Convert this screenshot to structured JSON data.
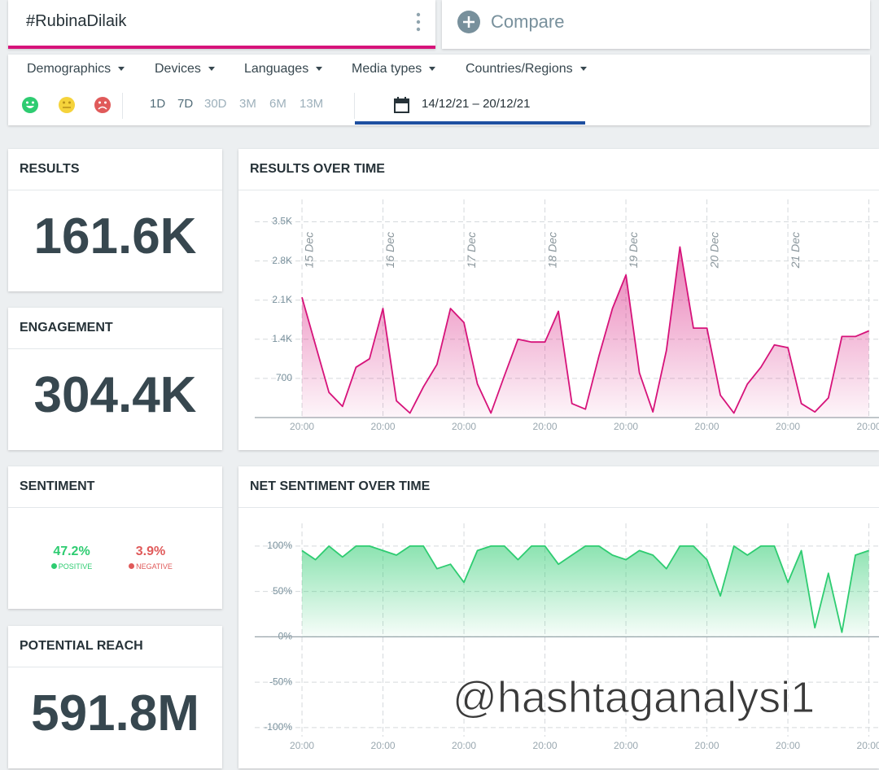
{
  "search": {
    "query": "#RubinaDilaik",
    "compare": "Compare"
  },
  "filters": [
    "Demographics",
    "Devices",
    "Languages",
    "Media types",
    "Countries/Regions"
  ],
  "periods": [
    "1D",
    "7D",
    "30D",
    "3M",
    "6M",
    "13M"
  ],
  "date_range": "14/12/21 – 20/12/21",
  "metrics": [
    {
      "title": "RESULTS",
      "value": "161.6K"
    },
    {
      "title": "ENGAGEMENT",
      "value": "304.4K"
    }
  ],
  "sentiment": {
    "title": "SENTIMENT",
    "positive": {
      "value": "47.2%",
      "label": "POSITIVE"
    },
    "negative": {
      "value": "3.9%",
      "label": "NEGATIVE"
    }
  },
  "reach": {
    "title": "POTENTIAL REACH",
    "value": "591.8M"
  },
  "chart_data": [
    {
      "type": "area",
      "title": "RESULTS OVER TIME",
      "x": [
        0,
        4,
        8,
        12,
        16,
        20,
        24,
        28,
        32,
        36,
        40,
        44,
        48,
        52,
        56,
        60,
        64,
        68,
        72,
        76,
        80,
        84,
        88,
        92,
        96,
        100,
        104,
        108,
        112,
        116,
        120,
        124,
        128,
        132,
        136,
        140,
        144,
        148,
        152,
        156,
        160,
        164,
        168
      ],
      "series": [
        {
          "color": "#d6137a",
          "values": [
            2150,
            1300,
            450,
            200,
            900,
            1050,
            1950,
            300,
            80,
            550,
            950,
            1950,
            1700,
            600,
            80,
            750,
            1400,
            1350,
            1350,
            1900,
            250,
            150,
            1100,
            1950,
            2550,
            800,
            100,
            1200,
            3050,
            1600,
            1600,
            400,
            80,
            600,
            900,
            1300,
            1250,
            250,
            100,
            350,
            1450,
            1450,
            1550
          ]
        }
      ],
      "xlim": [
        -14,
        171
      ],
      "ylim": [
        0,
        3900
      ],
      "xticks": [
        {
          "value": 0,
          "label": "20:00"
        },
        {
          "value": 24,
          "label": "20:00"
        },
        {
          "value": 48,
          "label": "20:00"
        },
        {
          "value": 72,
          "label": "20:00"
        },
        {
          "value": 96,
          "label": "20:00"
        },
        {
          "value": 120,
          "label": "20:00"
        },
        {
          "value": 144,
          "label": "20:00"
        },
        {
          "value": 168,
          "label": "20:00"
        }
      ],
      "date_labels": [
        "15 Dec",
        "16 Dec",
        "17 Dec",
        "18 Dec",
        "19 Dec",
        "20 Dec",
        "21 Dec"
      ],
      "yticks": [
        700,
        {
          "value": 1400,
          "label": "1.4K"
        },
        {
          "value": 2100,
          "label": "2.1K"
        },
        {
          "value": 2800,
          "label": "2.8K"
        },
        {
          "value": 3500,
          "label": "3.5K"
        }
      ],
      "grid": true
    },
    {
      "type": "area",
      "title": "NET SENTIMENT OVER TIME",
      "x": [
        0,
        4,
        8,
        12,
        16,
        20,
        24,
        28,
        32,
        36,
        40,
        44,
        48,
        52,
        56,
        60,
        64,
        68,
        72,
        76,
        80,
        84,
        88,
        92,
        96,
        100,
        104,
        108,
        112,
        116,
        120,
        124,
        128,
        132,
        136,
        140,
        144,
        148,
        152,
        156,
        160,
        164,
        168
      ],
      "series": [
        {
          "color": "#2ecc71",
          "values": [
            95,
            85,
            100,
            88,
            100,
            100,
            95,
            90,
            100,
            100,
            75,
            80,
            60,
            95,
            100,
            100,
            85,
            100,
            100,
            80,
            90,
            100,
            100,
            90,
            85,
            95,
            90,
            75,
            100,
            100,
            85,
            45,
            100,
            90,
            100,
            100,
            60,
            95,
            10,
            70,
            5,
            90,
            95
          ]
        }
      ],
      "xlim": [
        -14,
        171
      ],
      "ylim": [
        -110,
        125
      ],
      "xticks": [
        {
          "value": 0,
          "label": "20:00"
        },
        {
          "value": 24,
          "label": "20:00"
        },
        {
          "value": 48,
          "label": "20:00"
        },
        {
          "value": 72,
          "label": "20:00"
        },
        {
          "value": 96,
          "label": "20:00"
        },
        {
          "value": 120,
          "label": "20:00"
        },
        {
          "value": 144,
          "label": "20:00"
        },
        {
          "value": 168,
          "label": "20:00"
        }
      ],
      "yticks": [
        {
          "value": -100,
          "label": "-100%"
        },
        {
          "value": -50,
          "label": "-50%"
        },
        {
          "value": 0,
          "label": "0%"
        },
        {
          "value": 50,
          "label": "50%"
        },
        {
          "value": 100,
          "label": "100%"
        }
      ],
      "grid": true
    }
  ],
  "watermark": "@hashtaganalysi1"
}
